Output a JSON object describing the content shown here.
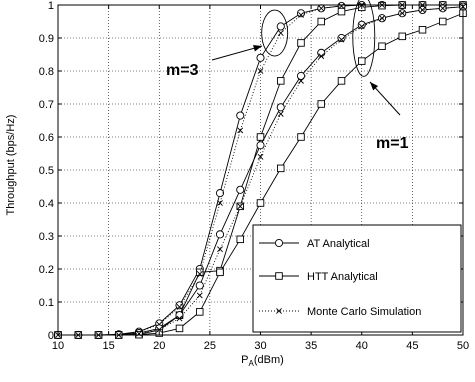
{
  "chart_data": {
    "type": "line",
    "title": "",
    "xlabel": "P",
    "xlabel_subscript": "A",
    "xlabel_unit": "(dBm)",
    "ylabel": "Throughput (bps/Hz)",
    "xlim": [
      10,
      50
    ],
    "ylim": [
      0,
      1
    ],
    "xticks": [
      10,
      15,
      20,
      25,
      30,
      35,
      40,
      45,
      50
    ],
    "yticks": [
      0,
      0.1,
      0.2,
      0.3,
      0.4,
      0.5,
      0.6,
      0.7,
      0.8,
      0.9,
      1
    ],
    "ytick_labels": [
      "0",
      "0.1",
      "0.2",
      "0.3",
      "0.4",
      "0.5",
      "0.6",
      "0.7",
      "0.8",
      "0.9",
      "1"
    ],
    "grid": true,
    "legend_position": "bottom-right",
    "legend": [
      {
        "label": "AT Analytical",
        "line": "solid",
        "marker": "circle"
      },
      {
        "label": "HTT Analytical",
        "line": "solid",
        "marker": "square"
      },
      {
        "label": "Monte Carlo Simulation",
        "line": "dotted",
        "marker": "x"
      }
    ],
    "x": [
      10,
      12,
      14,
      16,
      18,
      20,
      22,
      24,
      26,
      28,
      30,
      32,
      34,
      36,
      38,
      40,
      42,
      44,
      46,
      48,
      50
    ],
    "series": [
      {
        "group": "m=3",
        "kind": "AT",
        "line": "solid",
        "marker": "circle",
        "values": [
          0,
          0,
          0,
          0.002,
          0.01,
          0.035,
          0.09,
          0.2,
          0.43,
          0.665,
          0.84,
          0.935,
          0.975,
          0.99,
          0.997,
          1,
          1,
          1,
          1,
          1,
          1
        ]
      },
      {
        "group": "m=3",
        "kind": "HTT",
        "line": "solid",
        "marker": "square",
        "values": [
          0,
          0,
          0,
          0,
          0.002,
          0.015,
          0.06,
          0.19,
          0.195,
          0.39,
          0.6,
          0.77,
          0.885,
          0.95,
          0.98,
          0.993,
          0.998,
          1,
          1,
          1,
          1
        ]
      },
      {
        "group": "m=3",
        "kind": "Simulation",
        "line": "dotted",
        "marker": "x",
        "values": [
          0,
          0,
          0,
          0.001,
          0.009,
          0.032,
          0.085,
          0.185,
          0.4,
          0.62,
          0.8,
          0.915,
          0.97,
          0.99,
          0.997,
          1,
          1,
          1,
          1,
          1,
          1
        ]
      },
      {
        "group": "m=1",
        "kind": "AT",
        "line": "solid",
        "marker": "circle",
        "values": [
          0,
          0,
          0,
          0.001,
          0.006,
          0.02,
          0.06,
          0.15,
          0.305,
          0.44,
          0.575,
          0.69,
          0.785,
          0.855,
          0.9,
          0.94,
          0.96,
          0.975,
          0.985,
          0.99,
          0.995
        ]
      },
      {
        "group": "m=1",
        "kind": "HTT",
        "line": "solid",
        "marker": "square",
        "values": [
          0,
          0,
          0,
          0,
          0.001,
          0.006,
          0.02,
          0.07,
          0.19,
          0.29,
          0.4,
          0.505,
          0.6,
          0.7,
          0.77,
          0.83,
          0.875,
          0.905,
          0.925,
          0.95,
          0.975
        ]
      },
      {
        "group": "m=1",
        "kind": "Simulation",
        "line": "dotted",
        "marker": "x",
        "values": [
          0,
          0,
          0,
          0,
          0.004,
          0.016,
          0.05,
          0.12,
          0.26,
          0.39,
          0.54,
          0.67,
          0.77,
          0.845,
          0.895,
          0.935,
          0.96,
          0.975,
          0.985,
          0.99,
          0.995
        ]
      }
    ],
    "annotations": [
      {
        "text": "m=3",
        "x": 14,
        "y": 0.82
      },
      {
        "text": "m=1",
        "x": 44.5,
        "y": 0.57
      }
    ]
  }
}
